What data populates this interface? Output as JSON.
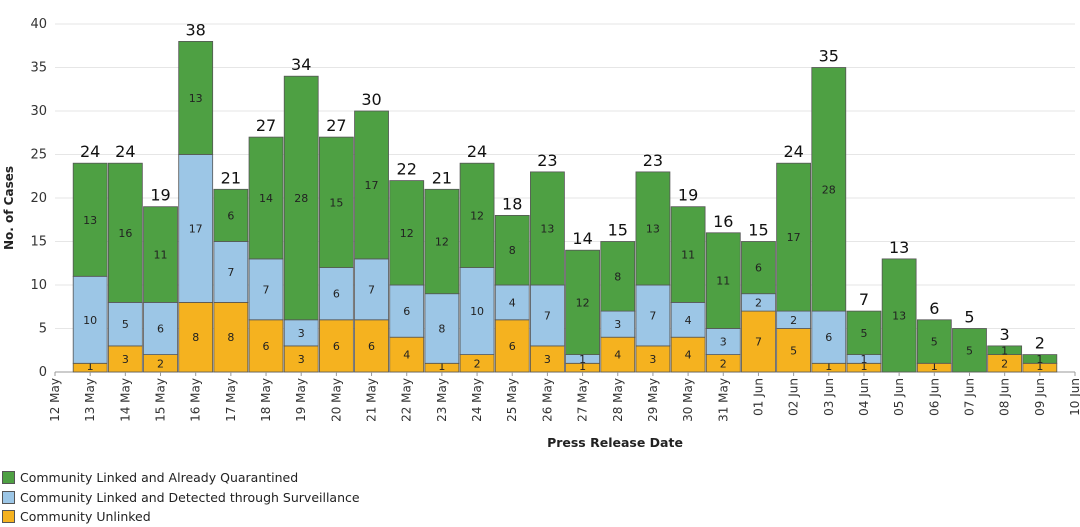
{
  "chart_data": {
    "type": "bar",
    "stacked": true,
    "title": "",
    "xlabel": "Press Release Date",
    "ylabel": "No. of Cases",
    "ylim": [
      0,
      40
    ],
    "yticks": [
      0,
      5,
      10,
      15,
      20,
      25,
      30,
      35,
      40
    ],
    "x_tick_labels": [
      "12 May",
      "13 May",
      "14 May",
      "15 May",
      "16 May",
      "17 May",
      "18 May",
      "19 May",
      "20 May",
      "21 May",
      "22 May",
      "23 May",
      "24 May",
      "25 May",
      "26 May",
      "27 May",
      "28 May",
      "29 May",
      "30 May",
      "31 May",
      "01 Jun",
      "02 Jun",
      "03 Jun",
      "04 Jun",
      "05 Jun",
      "06 Jun",
      "07 Jun",
      "08 Jun",
      "09 Jun",
      "10 Jun"
    ],
    "categories": [
      "13 May",
      "14 May",
      "15 May",
      "16 May",
      "17 May",
      "18 May",
      "19 May",
      "20 May",
      "21 May",
      "22 May",
      "23 May",
      "24 May",
      "25 May",
      "26 May",
      "27 May",
      "28 May",
      "29 May",
      "30 May",
      "31 May",
      "01 Jun",
      "02 Jun",
      "03 Jun",
      "04 Jun",
      "05 Jun",
      "06 Jun",
      "07 Jun",
      "08 Jun",
      "09 Jun"
    ],
    "series": [
      {
        "name": "Community Unlinked",
        "color": "#f5b21f",
        "values": [
          1,
          3,
          2,
          8,
          8,
          6,
          3,
          6,
          6,
          4,
          1,
          2,
          6,
          3,
          1,
          4,
          3,
          4,
          2,
          7,
          5,
          1,
          1,
          0,
          1,
          0,
          2,
          1
        ]
      },
      {
        "name": "Community Linked and Detected through Surveillance",
        "color": "#9cc6e6",
        "values": [
          10,
          5,
          6,
          17,
          7,
          7,
          3,
          6,
          7,
          6,
          8,
          10,
          4,
          7,
          1,
          3,
          7,
          4,
          3,
          2,
          2,
          6,
          1,
          0,
          0,
          0,
          0,
          0
        ]
      },
      {
        "name": "Community Linked and Already Quarantined",
        "color": "#4ea043",
        "values": [
          13,
          16,
          11,
          13,
          6,
          14,
          28,
          15,
          17,
          12,
          12,
          12,
          8,
          13,
          12,
          8,
          13,
          11,
          11,
          6,
          17,
          28,
          5,
          13,
          5,
          5,
          1,
          1
        ]
      }
    ],
    "totals": [
      24,
      24,
      19,
      38,
      21,
      27,
      34,
      27,
      30,
      22,
      21,
      24,
      18,
      23,
      14,
      15,
      23,
      19,
      16,
      15,
      24,
      35,
      7,
      13,
      6,
      5,
      3,
      2
    ],
    "legend": [
      "Community Linked and Already Quarantined",
      "Community Linked and Detected through Surveillance",
      "Community Unlinked"
    ],
    "legend_colors": [
      "#4ea043",
      "#9cc6e6",
      "#f5b21f"
    ],
    "legend_position": "bottom-left"
  }
}
